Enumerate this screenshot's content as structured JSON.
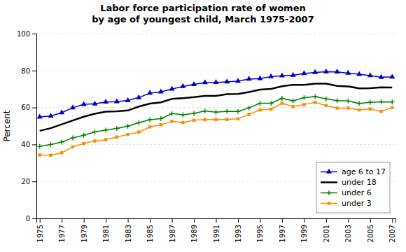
{
  "chart_data": {
    "type": "line",
    "title": "Labor force participation rate of women\nby age of youngest child, March 1975-2007",
    "ylabel": "Percent",
    "x": [
      1975,
      1976,
      1977,
      1978,
      1979,
      1980,
      1981,
      1982,
      1983,
      1984,
      1985,
      1986,
      1987,
      1988,
      1989,
      1990,
      1991,
      1992,
      1993,
      1994,
      1995,
      1996,
      1997,
      1998,
      1999,
      2000,
      2001,
      2002,
      2003,
      2004,
      2005,
      2006,
      2007
    ],
    "series": [
      {
        "name": "age 6 to 17",
        "color": "#0000CC",
        "marker": "triangle",
        "values": [
          54.9,
          55.4,
          57.2,
          59.9,
          61.7,
          62.0,
          63.0,
          63.2,
          63.8,
          65.4,
          67.8,
          68.5,
          70.0,
          71.4,
          72.5,
          73.5,
          73.6,
          73.9,
          74.3,
          75.4,
          75.7,
          76.7,
          77.2,
          77.5,
          78.4,
          79.0,
          79.4,
          79.3,
          78.6,
          78.0,
          77.3,
          76.4,
          76.5
        ]
      },
      {
        "name": "under 18",
        "color": "#000000",
        "marker": "none",
        "values": [
          47.4,
          48.8,
          50.9,
          53.0,
          55.0,
          56.6,
          57.8,
          58.0,
          58.4,
          60.5,
          62.1,
          62.8,
          64.7,
          65.1,
          65.6,
          66.3,
          66.3,
          67.2,
          67.3,
          68.4,
          69.7,
          70.1,
          71.5,
          72.3,
          72.3,
          72.9,
          72.9,
          71.7,
          71.4,
          70.4,
          70.5,
          70.9,
          70.8
        ]
      },
      {
        "name": "under 6",
        "color": "#008000",
        "marker": "plus",
        "values": [
          39.0,
          40.0,
          41.3,
          43.6,
          45.0,
          46.8,
          47.8,
          48.7,
          49.9,
          51.8,
          53.4,
          54.0,
          56.7,
          56.1,
          56.8,
          58.1,
          57.5,
          58.0,
          57.9,
          59.8,
          62.3,
          62.3,
          65.0,
          63.6,
          65.3,
          65.9,
          64.7,
          63.7,
          63.5,
          62.2,
          62.8,
          63.1,
          63.0
        ]
      },
      {
        "name": "under 3",
        "color": "#FF8C00",
        "marker": "square",
        "values": [
          34.3,
          34.2,
          35.5,
          38.7,
          40.5,
          41.9,
          42.6,
          44.0,
          45.4,
          46.7,
          49.5,
          50.7,
          52.5,
          51.9,
          53.1,
          53.5,
          53.5,
          53.5,
          53.9,
          56.3,
          58.7,
          59.1,
          62.3,
          60.5,
          61.6,
          62.8,
          61.1,
          59.7,
          59.7,
          58.7,
          59.2,
          57.9,
          60.0
        ]
      }
    ],
    "xlim": [
      1974.7,
      2007.3
    ],
    "ylim": [
      0,
      100
    ],
    "xticks": [
      1975,
      1977,
      1979,
      1981,
      1983,
      1985,
      1987,
      1989,
      1991,
      1993,
      1995,
      1997,
      1999,
      2001,
      2003,
      2005,
      2007
    ],
    "yticks": [
      0,
      20,
      40,
      60,
      80,
      100
    ],
    "grid": true,
    "legend": "lower right"
  }
}
